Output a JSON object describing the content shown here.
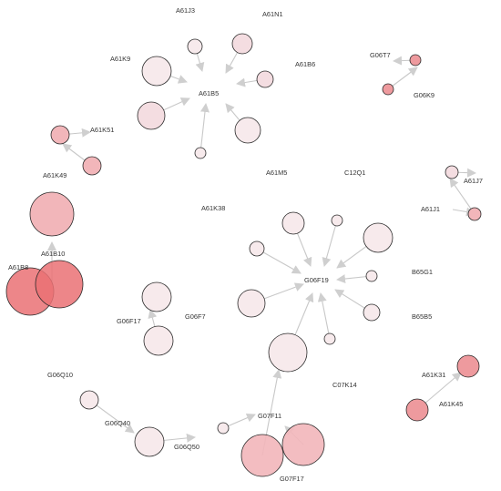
{
  "labels": {
    "a61j3": "A61J3",
    "a61n1": "A61N1",
    "a61k9": "A61K9",
    "a61b6": "A61B6",
    "a61b5": "A61B5",
    "g06t7": "G06T7",
    "g06k9": "G06K9",
    "a61k51": "A61K51",
    "a61k49": "A61K49",
    "a61m5": "A61M5",
    "c12q1": "C12Q1",
    "a61j1": "A61J1",
    "a61j7": "A61J7",
    "a61k38": "A61K38",
    "a61b10": "A61B10",
    "a61b8": "A61B8",
    "g06f19": "G06F19",
    "b65g1": "B65G1",
    "b65b5": "B65B5",
    "g06f17": "G06F17",
    "g06f7": "G06F7",
    "c07k14": "C07K14",
    "a61k31": "A61K31",
    "a61k45": "A61K45",
    "g06q10": "G06Q10",
    "g06q40": "G06Q40",
    "g06q50": "G06Q50",
    "g07f11": "G07F11",
    "g07f17": "G07F17"
  },
  "colors": {
    "very_light": "#f7eaec",
    "light": "#f4dde1",
    "medium": "#f2b6ba",
    "strong": "#ee9a9e",
    "strongest": "#ea7174",
    "edge": "#c8c8c8",
    "background": "#ffffff"
  }
}
